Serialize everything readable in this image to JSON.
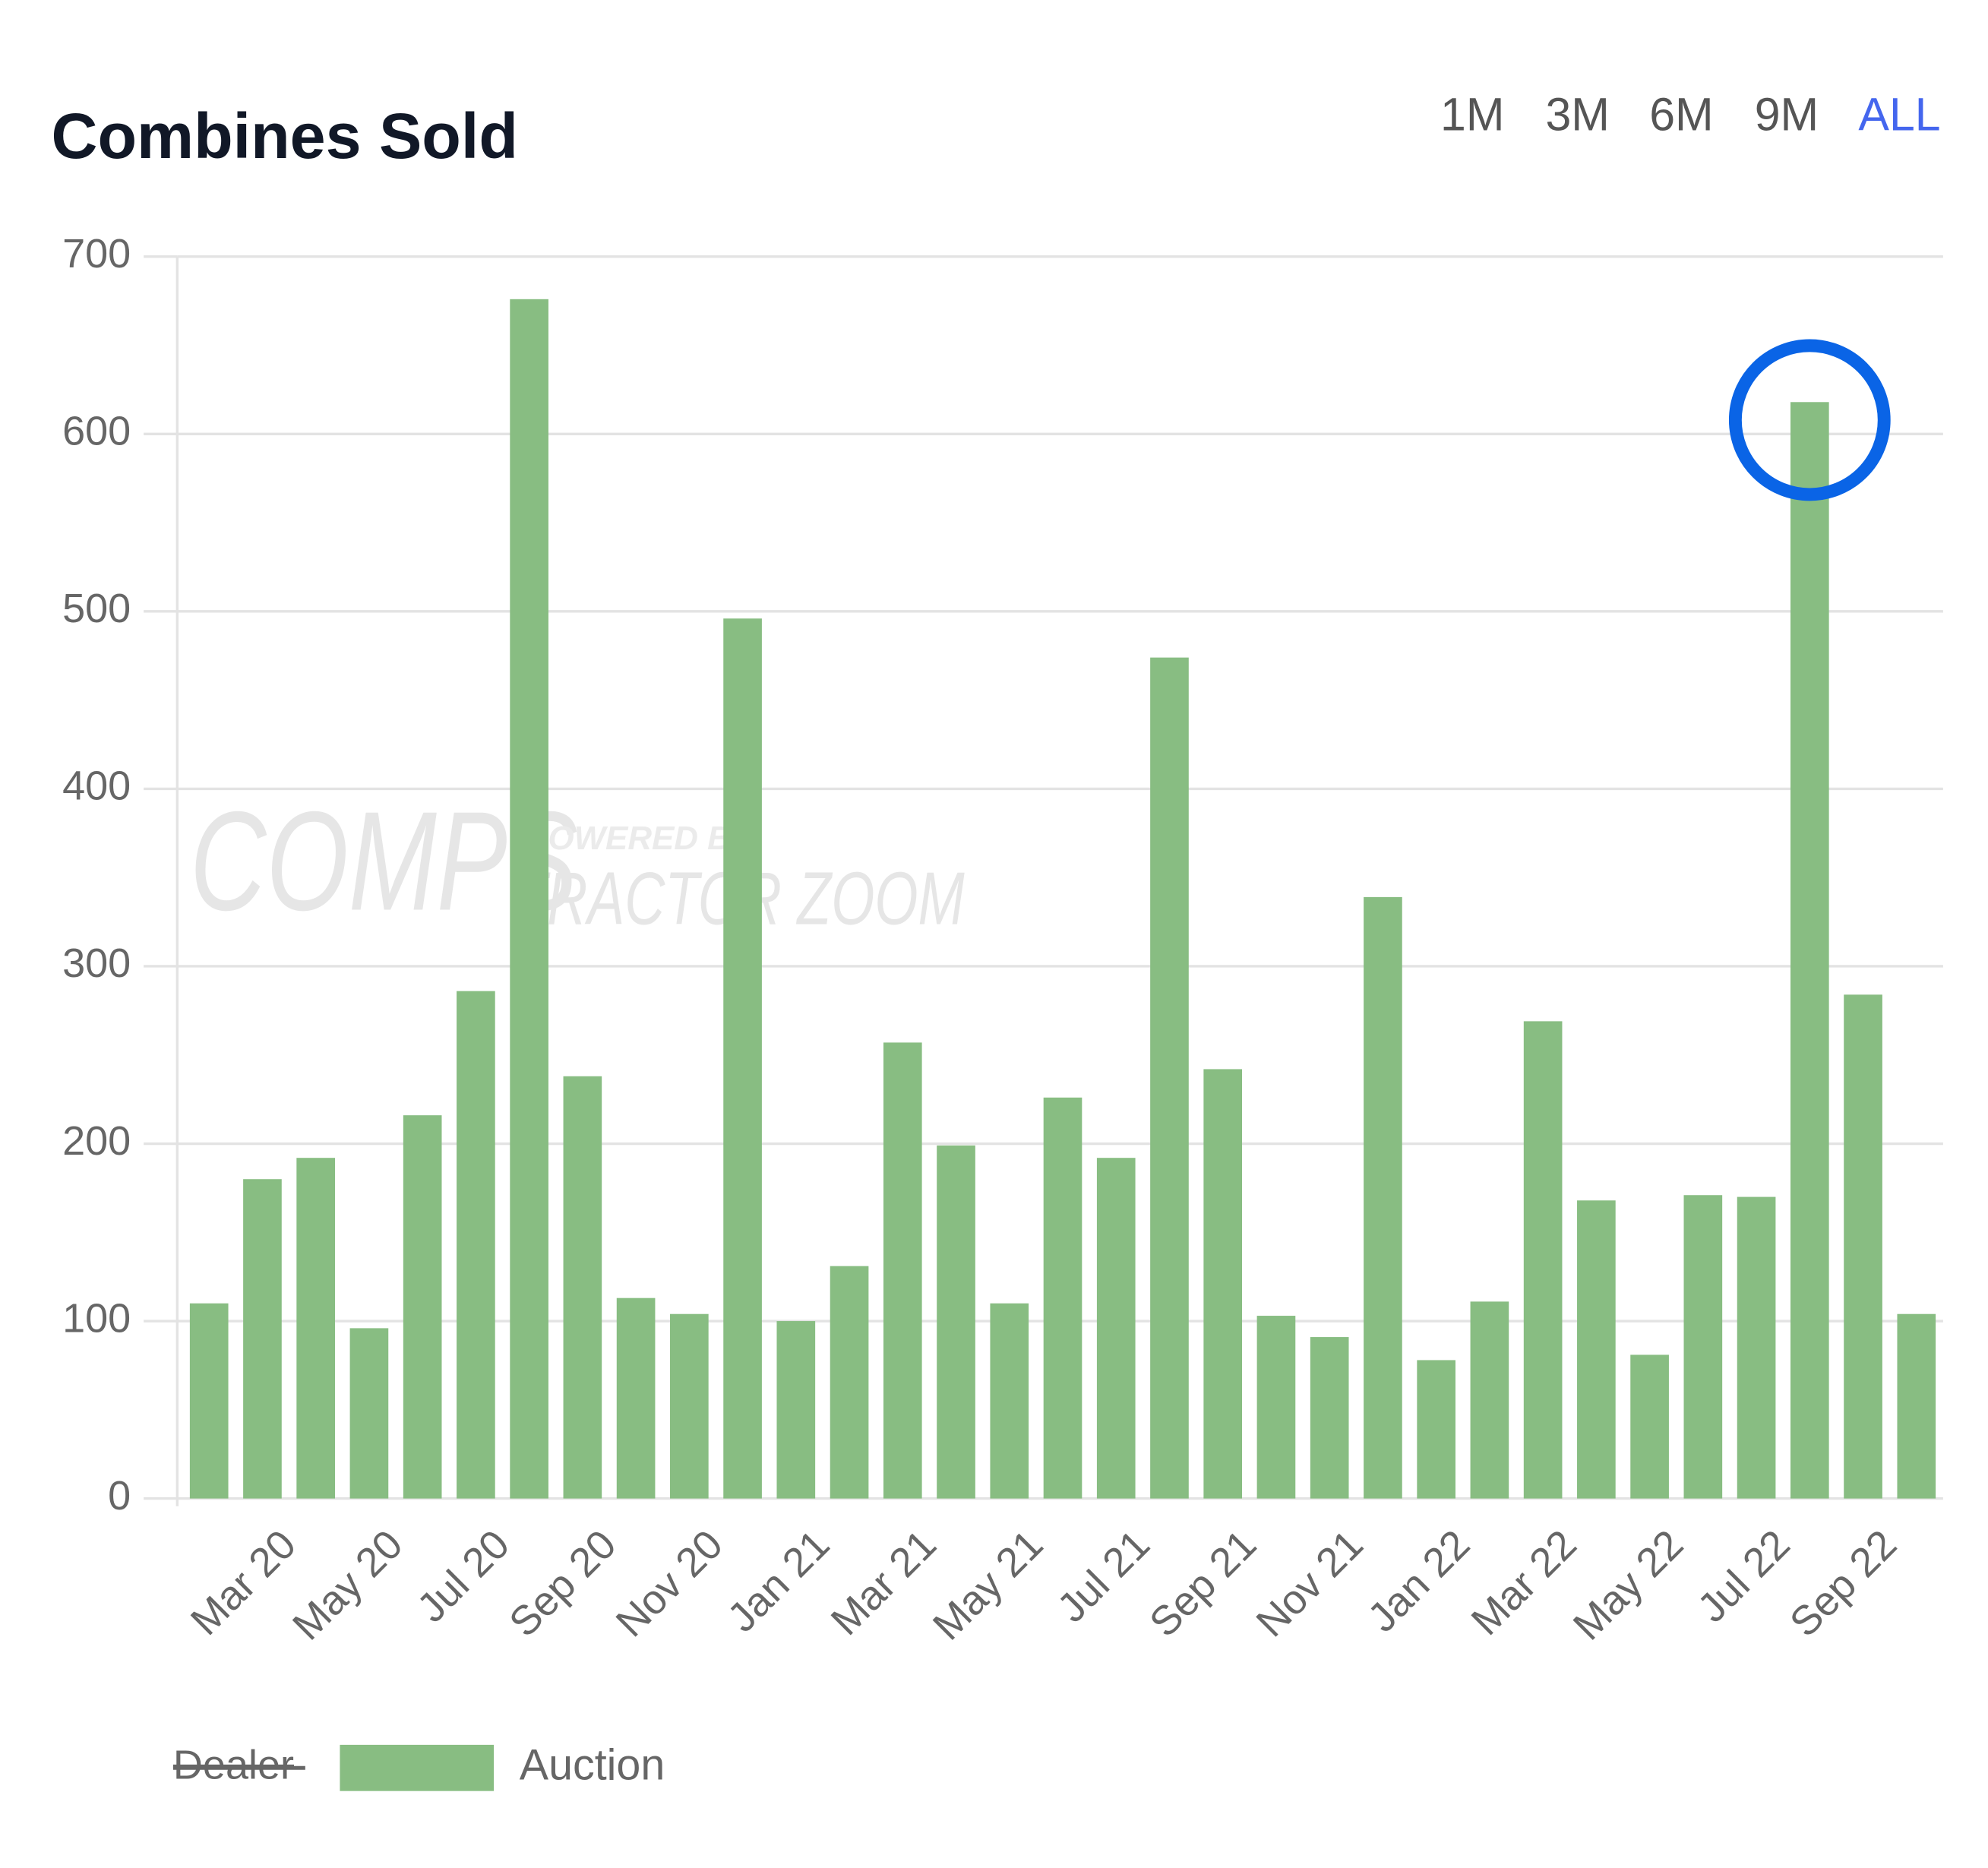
{
  "chart_data": {
    "type": "bar",
    "title": "Combines Sold",
    "range_buttons": [
      "1M",
      "3M",
      "6M",
      "9M",
      "ALL"
    ],
    "active_range": "ALL",
    "watermark": {
      "main": "COMPS",
      "small": "POWERED BY",
      "sub": "TRACTOR ZOOM"
    },
    "categories": [
      null,
      "Mar 20",
      null,
      "May 20",
      null,
      "Jul 20",
      null,
      "Sep 20",
      null,
      "Nov 20",
      null,
      "Jan 21",
      null,
      "Mar 21",
      null,
      "May 21",
      null,
      "Jul 21",
      null,
      "Sep 21",
      null,
      "Nov 21",
      null,
      "Jan 22",
      null,
      "Mar 22",
      null,
      "May 22",
      null,
      "Jul 22",
      null,
      "Sep 22",
      null
    ],
    "series": [
      {
        "name": "Auction",
        "color": "#88bd82",
        "values": [
          110,
          180,
          192,
          96,
          216,
          286,
          676,
          238,
          113,
          104,
          496,
          100,
          131,
          257,
          199,
          110,
          226,
          192,
          474,
          242,
          103,
          91,
          339,
          78,
          111,
          269,
          168,
          81,
          171,
          170,
          618,
          284,
          104
        ]
      }
    ],
    "legend_hidden": [
      "Dealer"
    ],
    "highlight_index": 30,
    "highlight_color": "#0a64e6",
    "ylim": [
      0,
      700
    ],
    "yticks": [
      0,
      100,
      200,
      300,
      400,
      500,
      600,
      700
    ],
    "grid": true
  }
}
